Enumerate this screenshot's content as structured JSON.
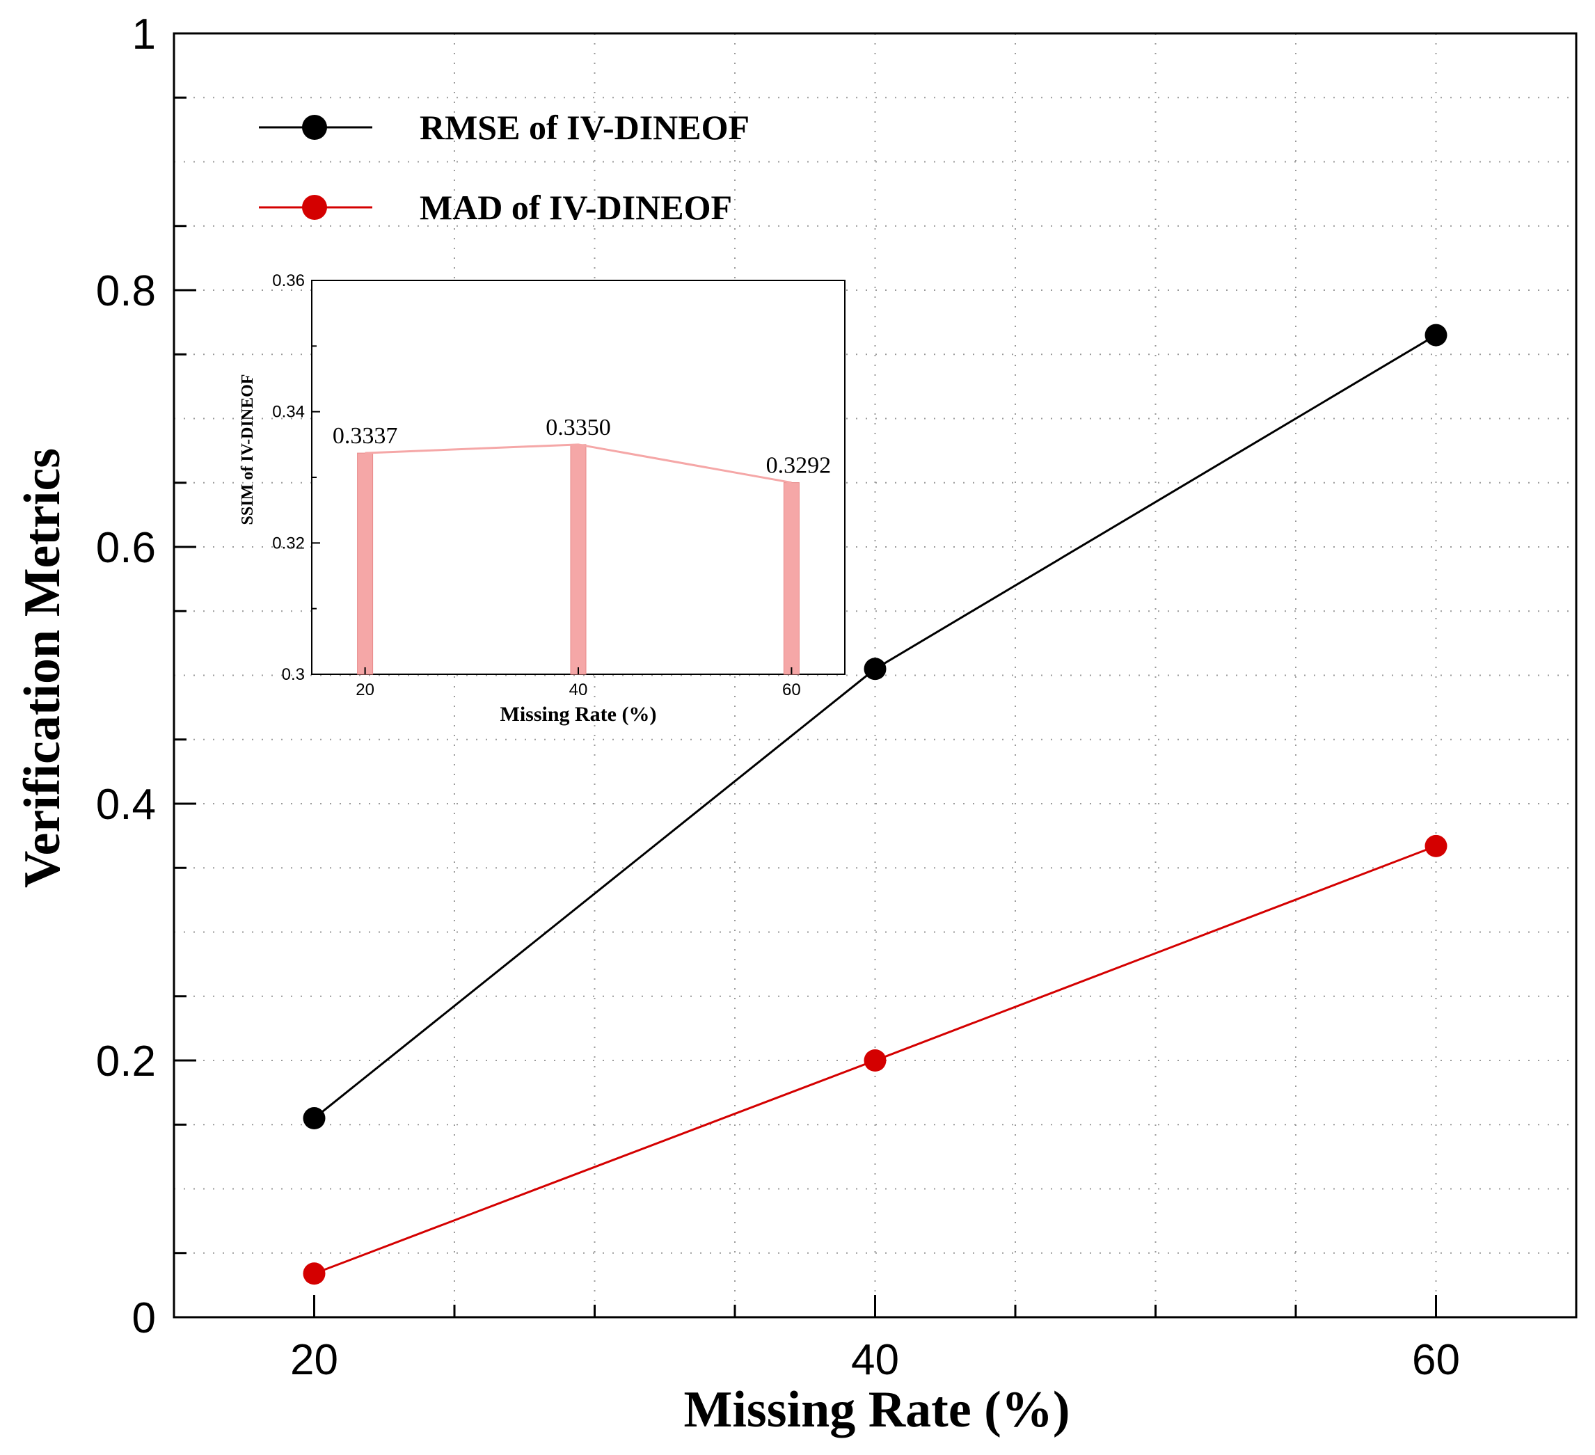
{
  "chart_data": [
    {
      "type": "line",
      "xlabel": "Missing Rate (%)",
      "ylabel": "Verification  Metrics",
      "x": [
        20,
        40,
        60
      ],
      "xlim": [
        15,
        65
      ],
      "ylim": [
        0,
        1
      ],
      "x_ticks": [
        "20",
        "40",
        "60"
      ],
      "y_ticks": [
        "0",
        "0.2",
        "0.4",
        "0.6",
        "0.8",
        "1"
      ],
      "grid": true,
      "legend_position": "top-left",
      "series": [
        {
          "name": "RMSE of IV-DINEOF",
          "values": [
            0.155,
            0.505,
            0.765
          ],
          "color": "#000000"
        },
        {
          "name": "MAD of IV-DINEOF",
          "values": [
            0.034,
            0.2,
            0.367
          ],
          "color": "#d40000"
        }
      ]
    },
    {
      "type": "bar",
      "inset": true,
      "xlabel": "Missing Rate (%)",
      "ylabel": "SSIM of IV-DINEOF",
      "categories": [
        "20",
        "40",
        "60"
      ],
      "x": [
        20,
        40,
        60
      ],
      "values": [
        0.3337,
        0.335,
        0.3292
      ],
      "data_labels": [
        "0.3337",
        "0.3350",
        "0.3292"
      ],
      "xlim": [
        15,
        65
      ],
      "ylim": [
        0.3,
        0.36
      ],
      "y_ticks": [
        "0.3",
        "0.32",
        "0.34",
        "0.36"
      ],
      "color": "#f5a7a7",
      "line_color": "#f5a7a7"
    }
  ]
}
